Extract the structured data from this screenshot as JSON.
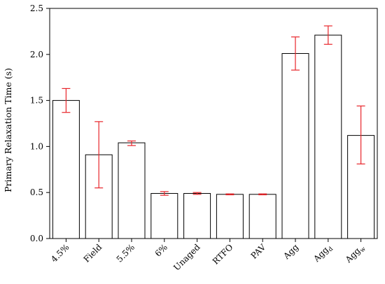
{
  "chart_data": {
    "type": "bar",
    "title": "",
    "xlabel": "",
    "ylabel": "Primary Relaxation Time (s)",
    "ylim": [
      0,
      2.5
    ],
    "yticks": [
      "0.0",
      "0.5",
      "1.0",
      "1.5",
      "2.0",
      "2.5"
    ],
    "categories": [
      {
        "main": "4.5%",
        "sub": ""
      },
      {
        "main": "Field",
        "sub": ""
      },
      {
        "main": "5.5%",
        "sub": ""
      },
      {
        "main": "6%",
        "sub": ""
      },
      {
        "main": "Unaged",
        "sub": ""
      },
      {
        "main": "RTFO",
        "sub": ""
      },
      {
        "main": "PAV",
        "sub": ""
      },
      {
        "main": "Agg",
        "sub": ""
      },
      {
        "main": "Agg",
        "sub": "d"
      },
      {
        "main": "Agg",
        "sub": "w"
      }
    ],
    "values": [
      1.5,
      0.91,
      1.04,
      0.49,
      0.49,
      0.48,
      0.48,
      2.01,
      2.21,
      1.12
    ],
    "error_low": [
      1.37,
      0.55,
      1.01,
      0.47,
      0.48,
      0.475,
      0.475,
      1.83,
      2.11,
      0.81
    ],
    "error_high": [
      1.63,
      1.27,
      1.06,
      0.51,
      0.5,
      0.485,
      0.485,
      2.19,
      2.31,
      1.44
    ],
    "grid": false,
    "legend": "none",
    "bar_fill": "#ffffff",
    "bar_stroke": "#000000",
    "error_color": "#e8262b"
  }
}
